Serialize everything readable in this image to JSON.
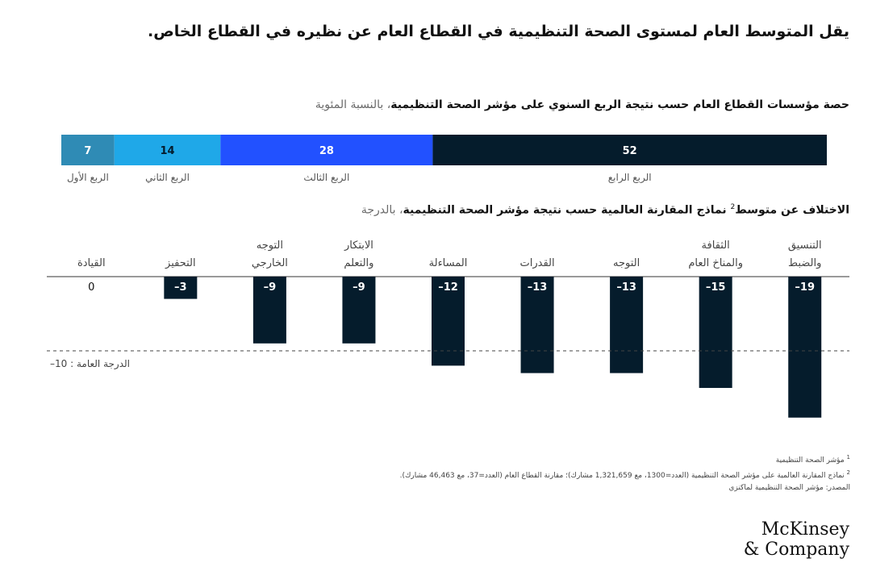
{
  "headline": "يقل المتوسط العام لمستوى الصحة التنظيمية في القطاع العام عن نظيره في القطاع الخاص.",
  "chart_data": [
    {
      "type": "stacked-bar-100",
      "title_bold": "حصة مؤسسات القطاع العام حسب نتيجة الربع السنوي على مؤشر الصحة التنظيمية",
      "title_muted": "، بالنسبة المئوية",
      "categories": [
        "الربع الأول",
        "الربع الثاني",
        "الربع الثالث",
        "الربع الرابع"
      ],
      "values": [
        7,
        14,
        28,
        52
      ],
      "value_labels": [
        "7",
        "14",
        "28",
        "52"
      ],
      "colors": [
        "#2f8bb5",
        "#1fa8e8",
        "#2251ff",
        "#051c2c"
      ]
    },
    {
      "type": "bar",
      "title_bold": "الاختلاف عن متوسط",
      "title_sup": "2",
      "title_bold2": " نماذج المقارنة العالمية حسب نتيجة مؤشر الصحة التنظيمية",
      "title_muted": "، بالدرجة",
      "categories": [
        [
          "التنسيق",
          "والضبط"
        ],
        [
          "الثقافة",
          "والمناخ العام"
        ],
        [
          "التوجه"
        ],
        [
          "القدرات"
        ],
        [
          "المساءلة"
        ],
        [
          "الابتكار",
          "والتعلم"
        ],
        [
          "التوجه",
          "الخارجي"
        ],
        [
          "التحفيز"
        ],
        [
          "القيادة"
        ]
      ],
      "values": [
        -19,
        -15,
        -13,
        -13,
        -12,
        -9,
        -9,
        -3,
        0
      ],
      "value_labels": [
        "–19",
        "–15",
        "–13",
        "–13",
        "–12",
        "–9",
        "–9",
        "–3",
        "0"
      ],
      "reference_line": {
        "value": -10,
        "label": "–10 : الدرجة العامة"
      },
      "ylim": [
        -19,
        0
      ],
      "bar_color": "#051c2c"
    }
  ],
  "footnotes": {
    "n1_num": "1",
    "n1": "مؤشر الصحة التنظيمية",
    "n2_num": "2",
    "n2": "نماذج المقارنة العالمية على مؤشر الصحة التنظيمية (العدد=1300، مع 1,321,659 مشارك)؛ مقارنة القطاع العام (العدد=37، مع 46,463 مشارك).",
    "source": "المصدر: مؤشر الصحة التنظيمية لماكنزي"
  },
  "logo": {
    "line1": "McKinsey",
    "line2": "& Company"
  }
}
